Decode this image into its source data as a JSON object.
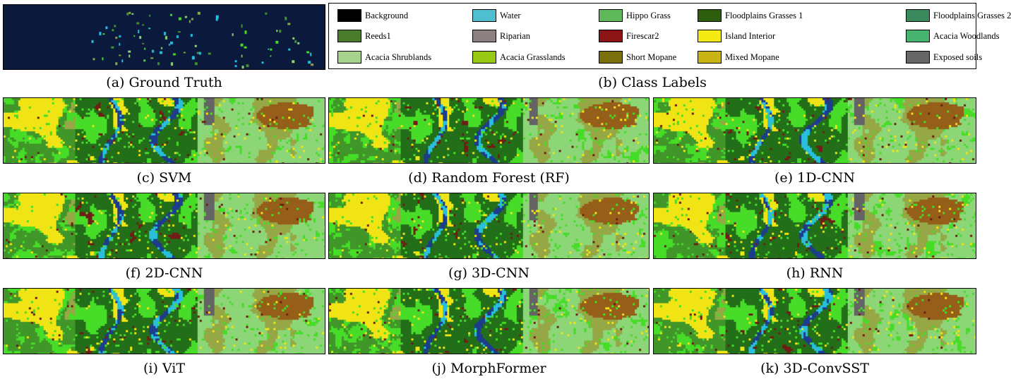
{
  "figure": {
    "panels": [
      {
        "id": "a",
        "caption": "(a) Ground Truth",
        "kind": "ground_truth"
      },
      {
        "id": "b",
        "caption": "(b) Class Labels",
        "kind": "legend"
      },
      {
        "id": "c",
        "caption": "(c) SVM",
        "kind": "map"
      },
      {
        "id": "d",
        "caption": "(d) Random Forest (RF)",
        "kind": "map"
      },
      {
        "id": "e",
        "caption": "(e) 1D-CNN",
        "kind": "map"
      },
      {
        "id": "f",
        "caption": "(f) 2D-CNN",
        "kind": "map"
      },
      {
        "id": "g",
        "caption": "(g) 3D-CNN",
        "kind": "map"
      },
      {
        "id": "h",
        "caption": "(h) RNN",
        "kind": "map"
      },
      {
        "id": "i",
        "caption": "(i) ViT",
        "kind": "map"
      },
      {
        "id": "j",
        "caption": "(j) MorphFormer",
        "kind": "map"
      },
      {
        "id": "k",
        "caption": "(k) 3D-ConvSST",
        "kind": "map"
      }
    ]
  },
  "legend": {
    "classes": [
      {
        "label": "Background",
        "color": "#000000"
      },
      {
        "label": "Water",
        "color": "#4fbfcf"
      },
      {
        "label": "Hippo Grass",
        "color": "#5fb85a"
      },
      {
        "label": "Floodplains Grasses 1",
        "color": "#2d5e10"
      },
      {
        "label": "Floodplains Grasses 2",
        "color": "#3a8a5e"
      },
      {
        "label": "Reeds1",
        "color": "#4a7c2c"
      },
      {
        "label": "Riparian",
        "color": "#8c8080"
      },
      {
        "label": "Firescar2",
        "color": "#8c1414"
      },
      {
        "label": "Island Interior",
        "color": "#f5eb14"
      },
      {
        "label": "Acacia Woodlands",
        "color": "#46b46e"
      },
      {
        "label": "Acacia Shrublands",
        "color": "#a6d48f"
      },
      {
        "label": "Acacia Grasslands",
        "color": "#96c814"
      },
      {
        "label": "Short Mopane",
        "color": "#7a6f0a"
      },
      {
        "label": "Mixed Mopane",
        "color": "#c8b414"
      },
      {
        "label": "Exposed soils",
        "color": "#666666"
      }
    ]
  }
}
